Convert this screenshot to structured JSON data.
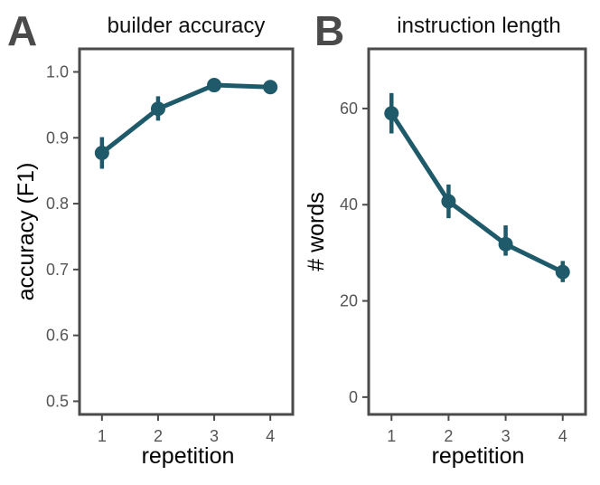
{
  "chart_data": [
    {
      "panel": "A",
      "type": "line",
      "title": "builder accuracy",
      "xlabel": "repetition",
      "ylabel": "accuracy (F1)",
      "x": [
        1,
        2,
        3,
        4
      ],
      "values": [
        0.877,
        0.944,
        0.98,
        0.977
      ],
      "error_low": [
        0.853,
        0.926,
        0.97,
        0.969
      ],
      "error_high": [
        0.901,
        0.963,
        0.988,
        0.985
      ],
      "xticks": [
        "1",
        "2",
        "3",
        "4"
      ],
      "yticks": [
        0.5,
        0.6,
        0.7,
        0.8,
        0.9,
        1.0
      ],
      "ytick_labels": [
        "0.5",
        "0.6",
        "0.7",
        "0.8",
        "0.9",
        "1.0"
      ],
      "ylim": [
        0.48,
        1.035
      ],
      "xlim": [
        0.6,
        4.4
      ],
      "color": "#1e5a6a"
    },
    {
      "panel": "B",
      "type": "line",
      "title": "instruction length",
      "xlabel": "repetition",
      "ylabel": "# words",
      "x": [
        1,
        2,
        3,
        4
      ],
      "values": [
        59,
        40.7,
        31.8,
        26
      ],
      "error_low": [
        54.8,
        37.2,
        29.4,
        23.9
      ],
      "error_high": [
        63.2,
        44.2,
        35.7,
        28.3
      ],
      "xticks": [
        "1",
        "2",
        "3",
        "4"
      ],
      "yticks": [
        0,
        20,
        40,
        60
      ],
      "ytick_labels": [
        "0",
        "20",
        "40",
        "60"
      ],
      "ylim": [
        -3.6,
        72.4
      ],
      "xlim": [
        0.6,
        4.4
      ],
      "color": "#1e5a6a"
    }
  ]
}
